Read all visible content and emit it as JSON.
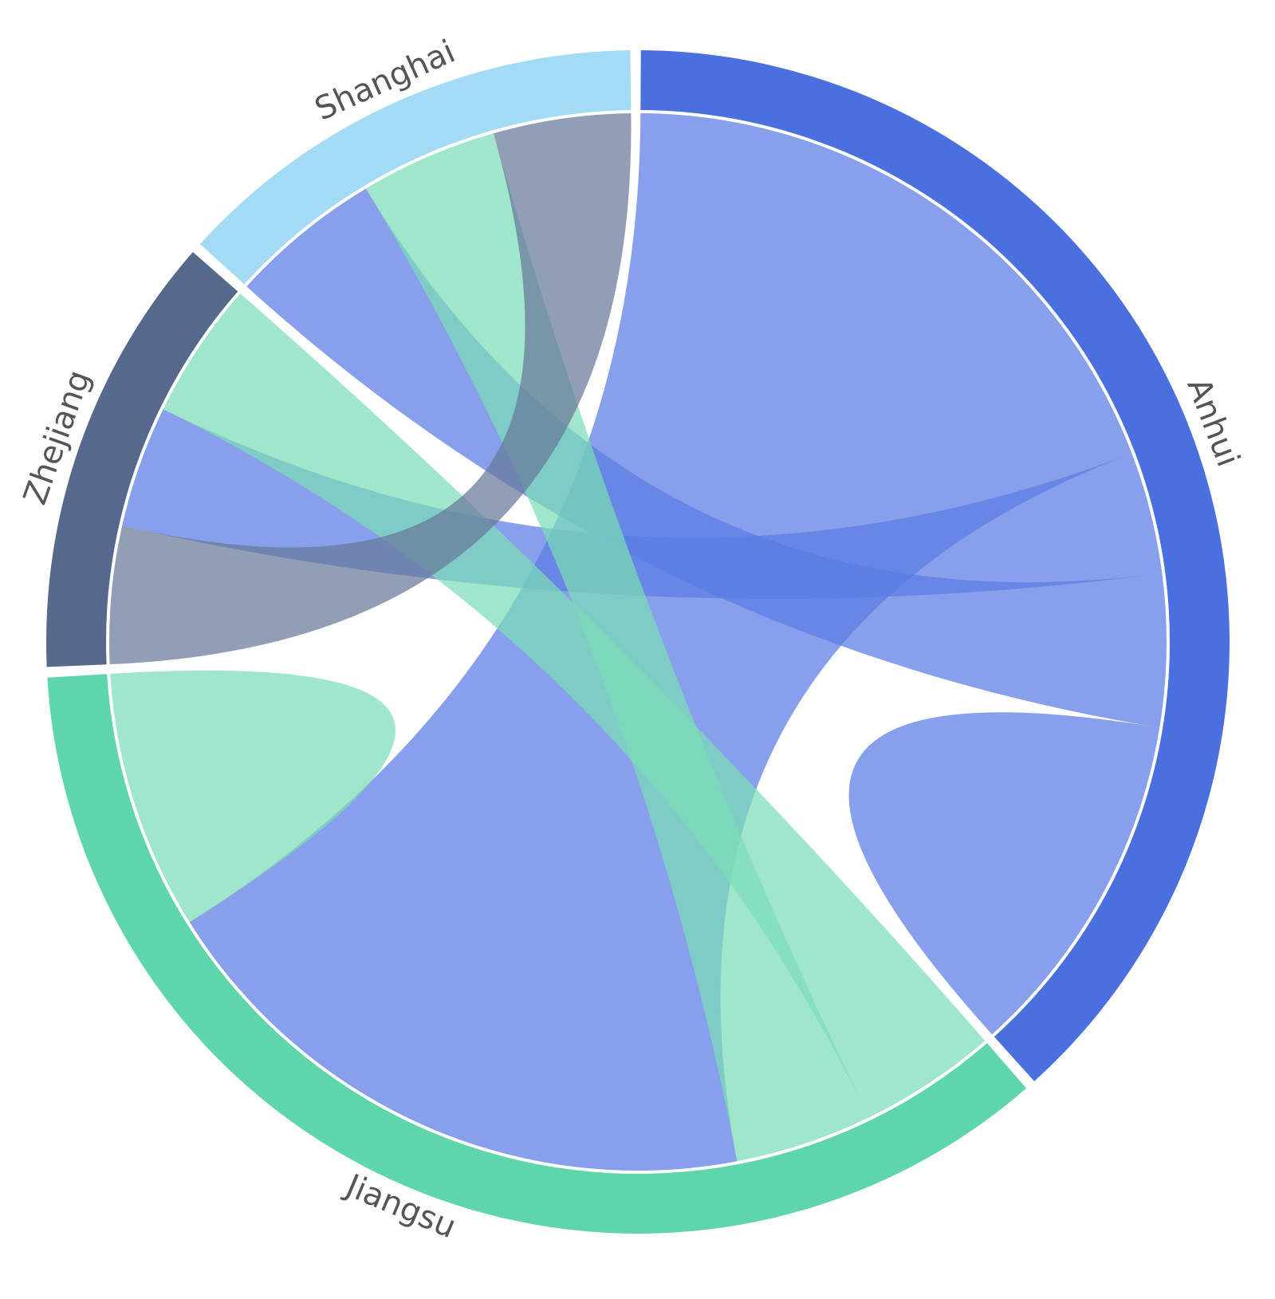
{
  "chart_data": {
    "type": "chord",
    "title": "",
    "groups": [
      {
        "name": "Anhui",
        "color": "#4a6fde",
        "ribbon_color": "#5a7be3",
        "total": 41.0
      },
      {
        "name": "Jiangsu",
        "color": "#5fd5aa",
        "ribbon_color": "#7cdcb7",
        "total": 41.0
      },
      {
        "name": "Zhejiang",
        "color": "#56688c",
        "ribbon_color": "#66799a",
        "total": 8.0
      },
      {
        "name": "Shanghai",
        "color": "#a3daf5",
        "ribbon_color": "#a3daf5",
        "total": 10.0
      }
    ],
    "flows": [
      {
        "source": "Anhui",
        "target": "Anhui",
        "value": 11.5
      },
      {
        "source": "Anhui",
        "target": "Jiangsu",
        "value": 20.5
      },
      {
        "source": "Anhui",
        "target": "Zhejiang",
        "value": 4.0
      },
      {
        "source": "Anhui",
        "target": "Shanghai",
        "value": 5.0
      },
      {
        "source": "Jiangsu",
        "target": "Jiangsu",
        "value": 8.5
      },
      {
        "source": "Jiangsu",
        "target": "Zhejiang",
        "value": 4.5
      },
      {
        "source": "Jiangsu",
        "target": "Shanghai",
        "value": 4.5
      },
      {
        "source": "Zhejiang",
        "target": "Shanghai",
        "value": 4.5
      }
    ],
    "legend": "none"
  }
}
